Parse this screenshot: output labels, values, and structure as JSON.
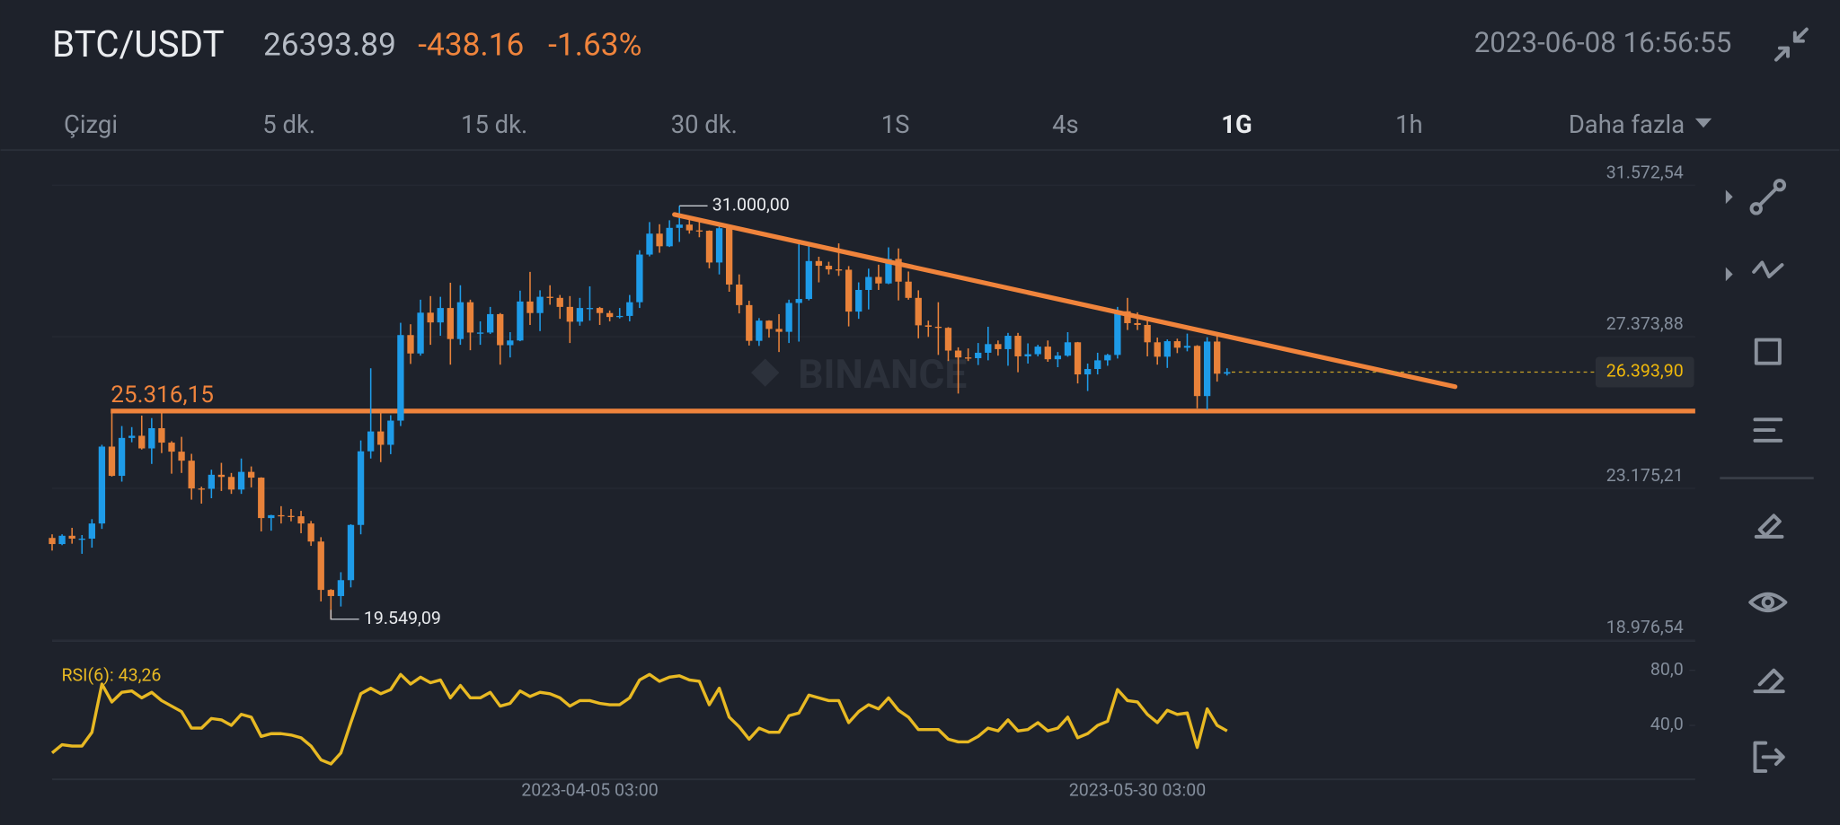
{
  "header": {
    "symbol": "BTC/USDT",
    "price": "26393.89",
    "change": "-438.16",
    "change_pct": "-1.63%",
    "datetime": "2023-06-08 16:56:55"
  },
  "tabs": [
    "Çizgi",
    "5 dk.",
    "15 dk.",
    "30 dk.",
    "1S",
    "4s",
    "1G",
    "1h",
    "Daha fazla"
  ],
  "active_tab": 6,
  "watermark": "BINANCE",
  "chart_data": [
    {
      "type": "candlestick",
      "categories": [
        null,
        null,
        null,
        null,
        null,
        null,
        null,
        null,
        null,
        null,
        null,
        null,
        null,
        null,
        null,
        null,
        null,
        null,
        null,
        null,
        null,
        null,
        null,
        null,
        null,
        null,
        null,
        null,
        null,
        null,
        null,
        null,
        null,
        null,
        null,
        null,
        null,
        null,
        null,
        null,
        null,
        null,
        null,
        null,
        null,
        null,
        null,
        null,
        null,
        null,
        null,
        null,
        null,
        null,
        "2023-04-05 03:00",
        null,
        null,
        null,
        null,
        null,
        null,
        null,
        null,
        null,
        null,
        null,
        null,
        null,
        null,
        null,
        null,
        null,
        null,
        null,
        null,
        null,
        null,
        null,
        null,
        null,
        null,
        null,
        null,
        null,
        null,
        null,
        null,
        null,
        null,
        null,
        null,
        null,
        null,
        null,
        null,
        null,
        null,
        null,
        null,
        null,
        null,
        null,
        null,
        null,
        null,
        null,
        null,
        null,
        null,
        "2023-05-30 03:00",
        null,
        null,
        null,
        null,
        null,
        null,
        null,
        null,
        null
      ],
      "open": [
        21800,
        21630,
        21860,
        21780,
        21780,
        22200,
        24330,
        23520,
        24570,
        24630,
        24280,
        24840,
        24440,
        24190,
        23940,
        23170,
        23160,
        23550,
        23490,
        23140,
        23630,
        23470,
        22350,
        22430,
        22410,
        22400,
        22200,
        21700,
        20360,
        20190,
        20630,
        22160,
        24200,
        24750,
        24380,
        25050,
        27420,
        26910,
        28040,
        27770,
        28170,
        27310,
        28330,
        27490,
        27490,
        28000,
        27140,
        27270,
        28350,
        28030,
        28480,
        28450,
        28200,
        27790,
        28170,
        28170,
        28030,
        27920,
        27950,
        28330,
        29650,
        30230,
        29880,
        30390,
        30480,
        30320,
        30310,
        29430,
        30380,
        28820,
        28250,
        27260,
        27820,
        27590,
        27510,
        28310,
        28420,
        29470,
        29340,
        29240,
        29230,
        28070,
        28670,
        29030,
        28850,
        29530,
        28900,
        28450,
        27690,
        27650,
        27620,
        26990,
        26800,
        26780,
        26930,
        27170,
        27030,
        27400,
        26830,
        26890,
        27100,
        26750,
        26850,
        27220,
        26330,
        26480,
        26720,
        26870,
        28080,
        27750,
        27700,
        27220,
        26820,
        27250,
        27070,
        27120,
        25730,
        27240,
        26350
      ],
      "high": [
        21900,
        21900,
        22080,
        21880,
        22320,
        24380,
        25250,
        24900,
        24870,
        25190,
        25120,
        25250,
        24480,
        24600,
        24130,
        23220,
        23690,
        23880,
        23600,
        24000,
        23780,
        23480,
        22440,
        22680,
        22600,
        22550,
        22270,
        21820,
        20380,
        20850,
        22180,
        24500,
        26500,
        25250,
        25200,
        27760,
        27720,
        28400,
        28500,
        28480,
        28870,
        28800,
        28400,
        27800,
        28200,
        28030,
        27500,
        28650,
        29170,
        28660,
        28800,
        28530,
        28500,
        28450,
        28770,
        28200,
        28100,
        28170,
        28530,
        29770,
        30550,
        30490,
        30600,
        31000,
        30620,
        30550,
        30320,
        30480,
        30420,
        29100,
        28370,
        27890,
        27830,
        28000,
        28400,
        30000,
        29890,
        29590,
        29450,
        29960,
        29330,
        28880,
        29260,
        29370,
        29850,
        29820,
        29180,
        28660,
        27820,
        28330,
        27640,
        27080,
        27050,
        27200,
        27650,
        27270,
        27480,
        27480,
        27190,
        27150,
        27270,
        26950,
        27500,
        27230,
        26630,
        26930,
        26900,
        28200,
        28450,
        28050,
        27830,
        27350,
        27300,
        27320,
        27460,
        27140,
        27360,
        27400,
        26500
      ],
      "low": [
        21450,
        21600,
        21640,
        21360,
        21530,
        22050,
        23500,
        23360,
        24450,
        24250,
        23850,
        24150,
        23580,
        23600,
        22860,
        22750,
        22900,
        23100,
        23020,
        23020,
        23200,
        21980,
        22000,
        22200,
        22260,
        21930,
        21580,
        20040,
        19549.09,
        19900,
        20430,
        21900,
        24000,
        23900,
        24120,
        24900,
        26620,
        26850,
        27150,
        27400,
        26600,
        27150,
        27000,
        27150,
        27450,
        26600,
        26800,
        27250,
        27700,
        27530,
        28260,
        27870,
        27200,
        27680,
        27820,
        27700,
        27800,
        27880,
        27800,
        28170,
        29600,
        29700,
        29860,
        30000,
        30230,
        30130,
        29270,
        29100,
        28620,
        28020,
        27130,
        27120,
        27350,
        26950,
        27200,
        27240,
        28380,
        28880,
        29100,
        29060,
        27660,
        27870,
        28130,
        28670,
        28830,
        28380,
        28400,
        27330,
        27370,
        26870,
        26700,
        25800,
        26700,
        26590,
        26720,
        26850,
        26570,
        26390,
        26630,
        26830,
        26680,
        26530,
        26820,
        26080,
        25870,
        26330,
        26570,
        26770,
        27560,
        27560,
        26830,
        26600,
        26510,
        26920,
        26970,
        25390,
        25350,
        26130,
        26300
      ],
      "close": [
        21630,
        21860,
        21780,
        21780,
        22200,
        24330,
        23520,
        24570,
        24630,
        24280,
        24840,
        24440,
        24190,
        23940,
        23170,
        23160,
        23550,
        23490,
        23140,
        23630,
        23470,
        22350,
        22430,
        22410,
        22400,
        22200,
        21700,
        20360,
        20190,
        20630,
        22160,
        24200,
        24750,
        24380,
        25050,
        27420,
        26910,
        28040,
        27770,
        28170,
        27310,
        28330,
        27490,
        27490,
        28000,
        27140,
        27270,
        28350,
        28030,
        28480,
        28450,
        28200,
        27790,
        28170,
        28170,
        28030,
        27920,
        27950,
        28330,
        29650,
        30230,
        29880,
        30390,
        30480,
        30320,
        30310,
        29430,
        30380,
        28820,
        28250,
        27260,
        27820,
        27590,
        27510,
        28310,
        28420,
        29470,
        29340,
        29240,
        29230,
        28070,
        28670,
        29030,
        28850,
        29530,
        28900,
        28450,
        27690,
        27650,
        27620,
        26990,
        26800,
        26780,
        26930,
        27170,
        27030,
        27400,
        26830,
        26890,
        27100,
        26750,
        26850,
        27220,
        26330,
        26480,
        26720,
        26870,
        28080,
        27750,
        27700,
        27220,
        26820,
        27250,
        27070,
        27120,
        25730,
        27240,
        26350,
        26393.9
      ],
      "up_color": "#1e9be8",
      "down_color": "#e8823a",
      "ylim": [
        18976.54,
        32482
      ],
      "yticks": [
        {
          "value": 31572.54,
          "label": "31.572,54"
        },
        {
          "value": 27373.88,
          "label": "27.373,88"
        },
        {
          "value": 23175.21,
          "label": "23.175,21"
        },
        {
          "value": 18976.54,
          "label": "18.976,54"
        }
      ],
      "grid": true,
      "max_label": "31.000,00",
      "min_label": "19.549,09",
      "last_price": {
        "value": 26393.9,
        "label": "26.393,90"
      },
      "support": {
        "value": 25316.15,
        "label": "25.316,15"
      },
      "trendline": {
        "x": [
          62.5,
          140.9
        ],
        "y": [
          30760,
          25990
        ]
      },
      "line_color": "#f0843c"
    },
    {
      "type": "line",
      "title": "RSI(6): 43,26",
      "values": [
        20,
        26,
        25,
        25,
        35,
        70,
        57,
        64,
        65,
        60,
        64,
        58,
        54,
        50,
        38,
        38,
        45,
        44,
        40,
        48,
        46,
        32,
        34,
        34,
        33,
        31,
        25,
        15,
        12,
        20,
        42,
        63,
        67,
        63,
        66,
        77,
        70,
        75,
        71,
        73,
        60,
        69,
        60,
        60,
        64,
        54,
        56,
        65,
        61,
        64,
        63,
        60,
        54,
        58,
        58,
        56,
        55,
        55,
        60,
        73,
        77,
        72,
        75,
        76,
        73,
        72,
        55,
        67,
        46,
        39,
        30,
        38,
        35,
        35,
        47,
        49,
        62,
        60,
        58,
        58,
        42,
        50,
        55,
        52,
        60,
        51,
        46,
        37,
        37,
        37,
        30,
        28,
        28,
        32,
        38,
        36,
        44,
        36,
        37,
        42,
        36,
        38,
        46,
        31,
        34,
        40,
        43,
        66,
        58,
        57,
        48,
        42,
        51,
        48,
        49,
        24,
        52,
        40,
        36
      ],
      "color": "#e8b923",
      "ylim": [
        0,
        100
      ],
      "yticks": [
        {
          "value": 80,
          "label": "80,0"
        },
        {
          "value": 40,
          "label": "40,0"
        }
      ]
    }
  ]
}
